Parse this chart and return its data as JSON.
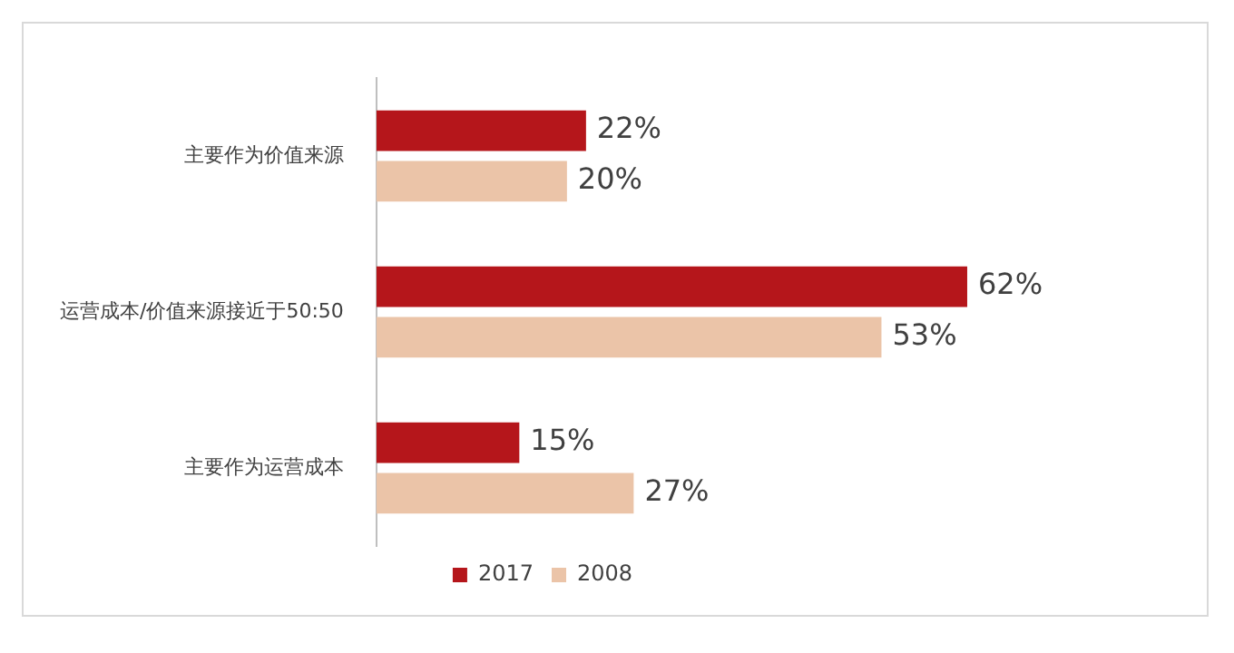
{
  "chart_data": {
    "type": "bar",
    "orientation": "horizontal",
    "categories": [
      "主要作为价值来源",
      "运营成本/价值来源接近于50:50",
      "主要作为运营成本"
    ],
    "series": [
      {
        "name": "2017",
        "color": "#b5161b",
        "values": [
          22,
          62,
          15
        ],
        "value_labels": [
          "22%",
          "62%",
          "15%"
        ]
      },
      {
        "name": "2008",
        "color": "#ebc4a8",
        "values": [
          20,
          53,
          27
        ],
        "value_labels": [
          "20%",
          "53%",
          "27%"
        ]
      }
    ],
    "legend": "bottom",
    "grid": false,
    "tick_labels": "y"
  }
}
